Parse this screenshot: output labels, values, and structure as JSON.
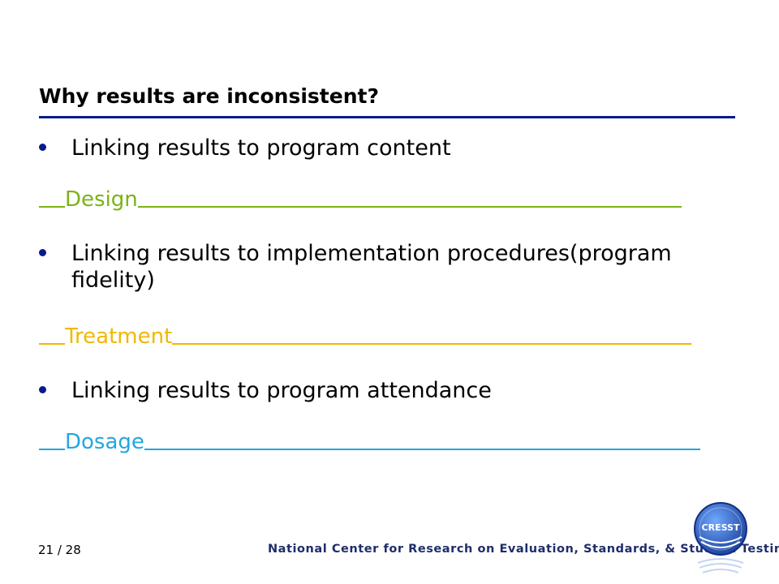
{
  "slide": {
    "title": "Why results are inconsistent?",
    "bullets": [
      {
        "text": "Linking results to program content",
        "answer": "Design",
        "answer_color": "#7ab317"
      },
      {
        "text": "Linking results to implementation procedures(program fidelity)",
        "answer": "Treatment",
        "answer_color": "#f0b800"
      },
      {
        "text": "Linking results to program attendance",
        "answer": "Dosage",
        "answer_color": "#22a7e0"
      }
    ]
  },
  "footer": {
    "page": "21 / 28",
    "organization": "National Center for Research on Evaluation, Standards, & Student Testing",
    "logo_text": "CRESST"
  },
  "colors": {
    "title_rule": "#0a1a8c",
    "bullet_dot": "#0a1a8c",
    "footer_text": "#1f2d6b",
    "logo_blue": "#2a5fc4"
  }
}
